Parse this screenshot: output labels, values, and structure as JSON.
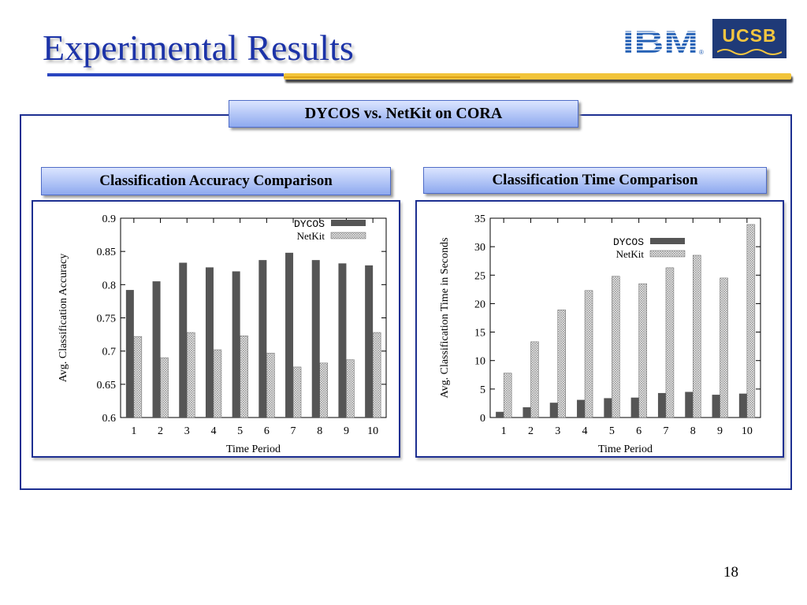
{
  "slide": {
    "title": "Experimental Results",
    "main_label": "DYCOS vs. NetKit on CORA",
    "left_label": "Classification Accuracy Comparison",
    "right_label": "Classification Time Comparison",
    "page_number": "18",
    "logos": {
      "left": "IBM",
      "right": "UCSB"
    }
  },
  "colors": {
    "title": "#1c33a8",
    "frame": "#1d2f91",
    "gold_rule": "#f2c43a",
    "dycos_bar": "#555555",
    "netkit_bar": "#cfcfcf"
  },
  "chart_data": [
    {
      "type": "bar",
      "title": "",
      "xlabel": "Time Period",
      "ylabel": "Avg. Classification Accuracy",
      "categories": [
        "1",
        "2",
        "3",
        "4",
        "5",
        "6",
        "7",
        "8",
        "9",
        "10"
      ],
      "ylim": [
        0.6,
        0.9
      ],
      "yticks": [
        0.6,
        0.65,
        0.7,
        0.75,
        0.8,
        0.85,
        0.9
      ],
      "ytick_labels": [
        "0.6",
        "0.65",
        "0.7",
        "0.75",
        "0.8",
        "0.85",
        "0.9"
      ],
      "legend_position": "top-right",
      "grid": false,
      "series": [
        {
          "name": "DYCOS",
          "style": "solid",
          "values": [
            0.792,
            0.805,
            0.833,
            0.826,
            0.82,
            0.837,
            0.848,
            0.837,
            0.832,
            0.829
          ]
        },
        {
          "name": "NetKit",
          "style": "hatched",
          "values": [
            0.722,
            0.69,
            0.728,
            0.702,
            0.723,
            0.697,
            0.676,
            0.682,
            0.687,
            0.728
          ]
        }
      ]
    },
    {
      "type": "bar",
      "title": "",
      "xlabel": "Time Period",
      "ylabel": "Avg. Classification Time in Seconds",
      "categories": [
        "1",
        "2",
        "3",
        "4",
        "5",
        "6",
        "7",
        "8",
        "9",
        "10"
      ],
      "ylim": [
        0,
        35
      ],
      "yticks": [
        0,
        5,
        10,
        15,
        20,
        25,
        30,
        35
      ],
      "ytick_labels": [
        "0",
        "5",
        "10",
        "15",
        "20",
        "25",
        "30",
        "35"
      ],
      "legend_position": "upper-middle-right",
      "grid": false,
      "series": [
        {
          "name": "DYCOS",
          "style": "solid",
          "values": [
            1.0,
            1.8,
            2.6,
            3.1,
            3.4,
            3.5,
            4.3,
            4.5,
            4.0,
            4.2
          ]
        },
        {
          "name": "NetKit",
          "style": "hatched",
          "values": [
            7.8,
            13.3,
            18.9,
            22.3,
            24.8,
            23.5,
            26.3,
            28.5,
            24.5,
            33.9
          ]
        }
      ]
    }
  ]
}
